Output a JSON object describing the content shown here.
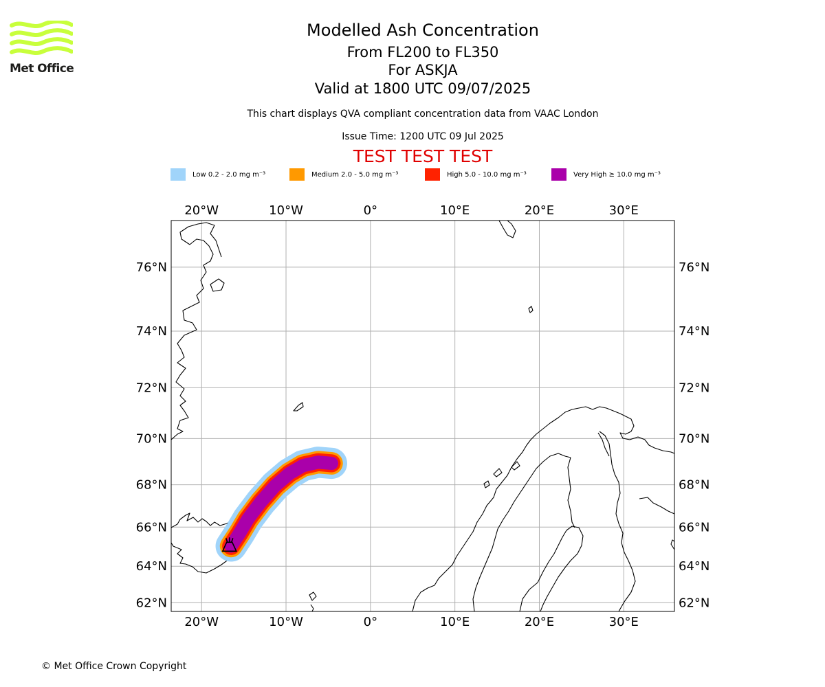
{
  "header": {
    "title": "Modelled Ash Concentration",
    "levels": "From FL200 to FL350",
    "volcano": "For ASKJA",
    "valid": "Valid at 1800 UTC 09/07/2025",
    "description": "This chart displays QVA compliant concentration data from VAAC London",
    "issue_time": "Issue Time: 1200 UTC 09 Jul 2025",
    "test_banner": "TEST TEST TEST",
    "test_color": "#e00000"
  },
  "logo": {
    "text": "Met Office",
    "color": "#c8ff3c"
  },
  "legend": {
    "items": [
      {
        "label": "Low 0.2 - 2.0 mg m⁻³",
        "color": "#a0d4fa"
      },
      {
        "label": "Medium 2.0 - 5.0 mg m⁻³",
        "color": "#ff9900"
      },
      {
        "label": "High 5.0 - 10.0 mg m⁻³",
        "color": "#ff2200"
      },
      {
        "label": "Very High ≥ 10.0 mg m⁻³",
        "color": "#aa00aa"
      }
    ]
  },
  "map": {
    "lon_range": [
      -23.6,
      36.0
    ],
    "lat_range": [
      61.5,
      77.3
    ],
    "projection": "mercator",
    "grid": true,
    "lon_ticks": [
      {
        "lon": -20,
        "label": "20°W"
      },
      {
        "lon": -10,
        "label": "10°W"
      },
      {
        "lon": 0,
        "label": "0°"
      },
      {
        "lon": 10,
        "label": "10°E"
      },
      {
        "lon": 20,
        "label": "20°E"
      },
      {
        "lon": 30,
        "label": "30°E"
      }
    ],
    "lat_ticks": [
      {
        "lat": 62,
        "label": "62°N"
      },
      {
        "lat": 64,
        "label": "64°N"
      },
      {
        "lat": 66,
        "label": "66°N"
      },
      {
        "lat": 68,
        "label": "68°N"
      },
      {
        "lat": 70,
        "label": "70°N"
      },
      {
        "lat": 72,
        "label": "72°N"
      },
      {
        "lat": 74,
        "label": "74°N"
      },
      {
        "lat": 76,
        "label": "76°N"
      }
    ],
    "volcano_location": {
      "lon": -16.7,
      "lat": 65.0
    },
    "ash_plume_axis": [
      {
        "lon": -16.5,
        "lat": 65.05
      },
      {
        "lon": -15.5,
        "lat": 65.7
      },
      {
        "lon": -14.5,
        "lat": 66.4
      },
      {
        "lon": -13.0,
        "lat": 67.2
      },
      {
        "lon": -11.3,
        "lat": 67.95
      },
      {
        "lon": -9.6,
        "lat": 68.5
      },
      {
        "lon": -8.0,
        "lat": 68.85
      },
      {
        "lon": -6.2,
        "lat": 69.0
      },
      {
        "lon": -4.6,
        "lat": 68.95
      }
    ],
    "ash_bands": [
      {
        "level": "low",
        "half_width_km": 80
      },
      {
        "level": "medium",
        "half_width_km": 58
      },
      {
        "level": "high",
        "half_width_km": 46
      },
      {
        "level": "very_high",
        "half_width_km": 34
      }
    ]
  },
  "footer": {
    "copyright": "© Met Office Crown Copyright"
  }
}
